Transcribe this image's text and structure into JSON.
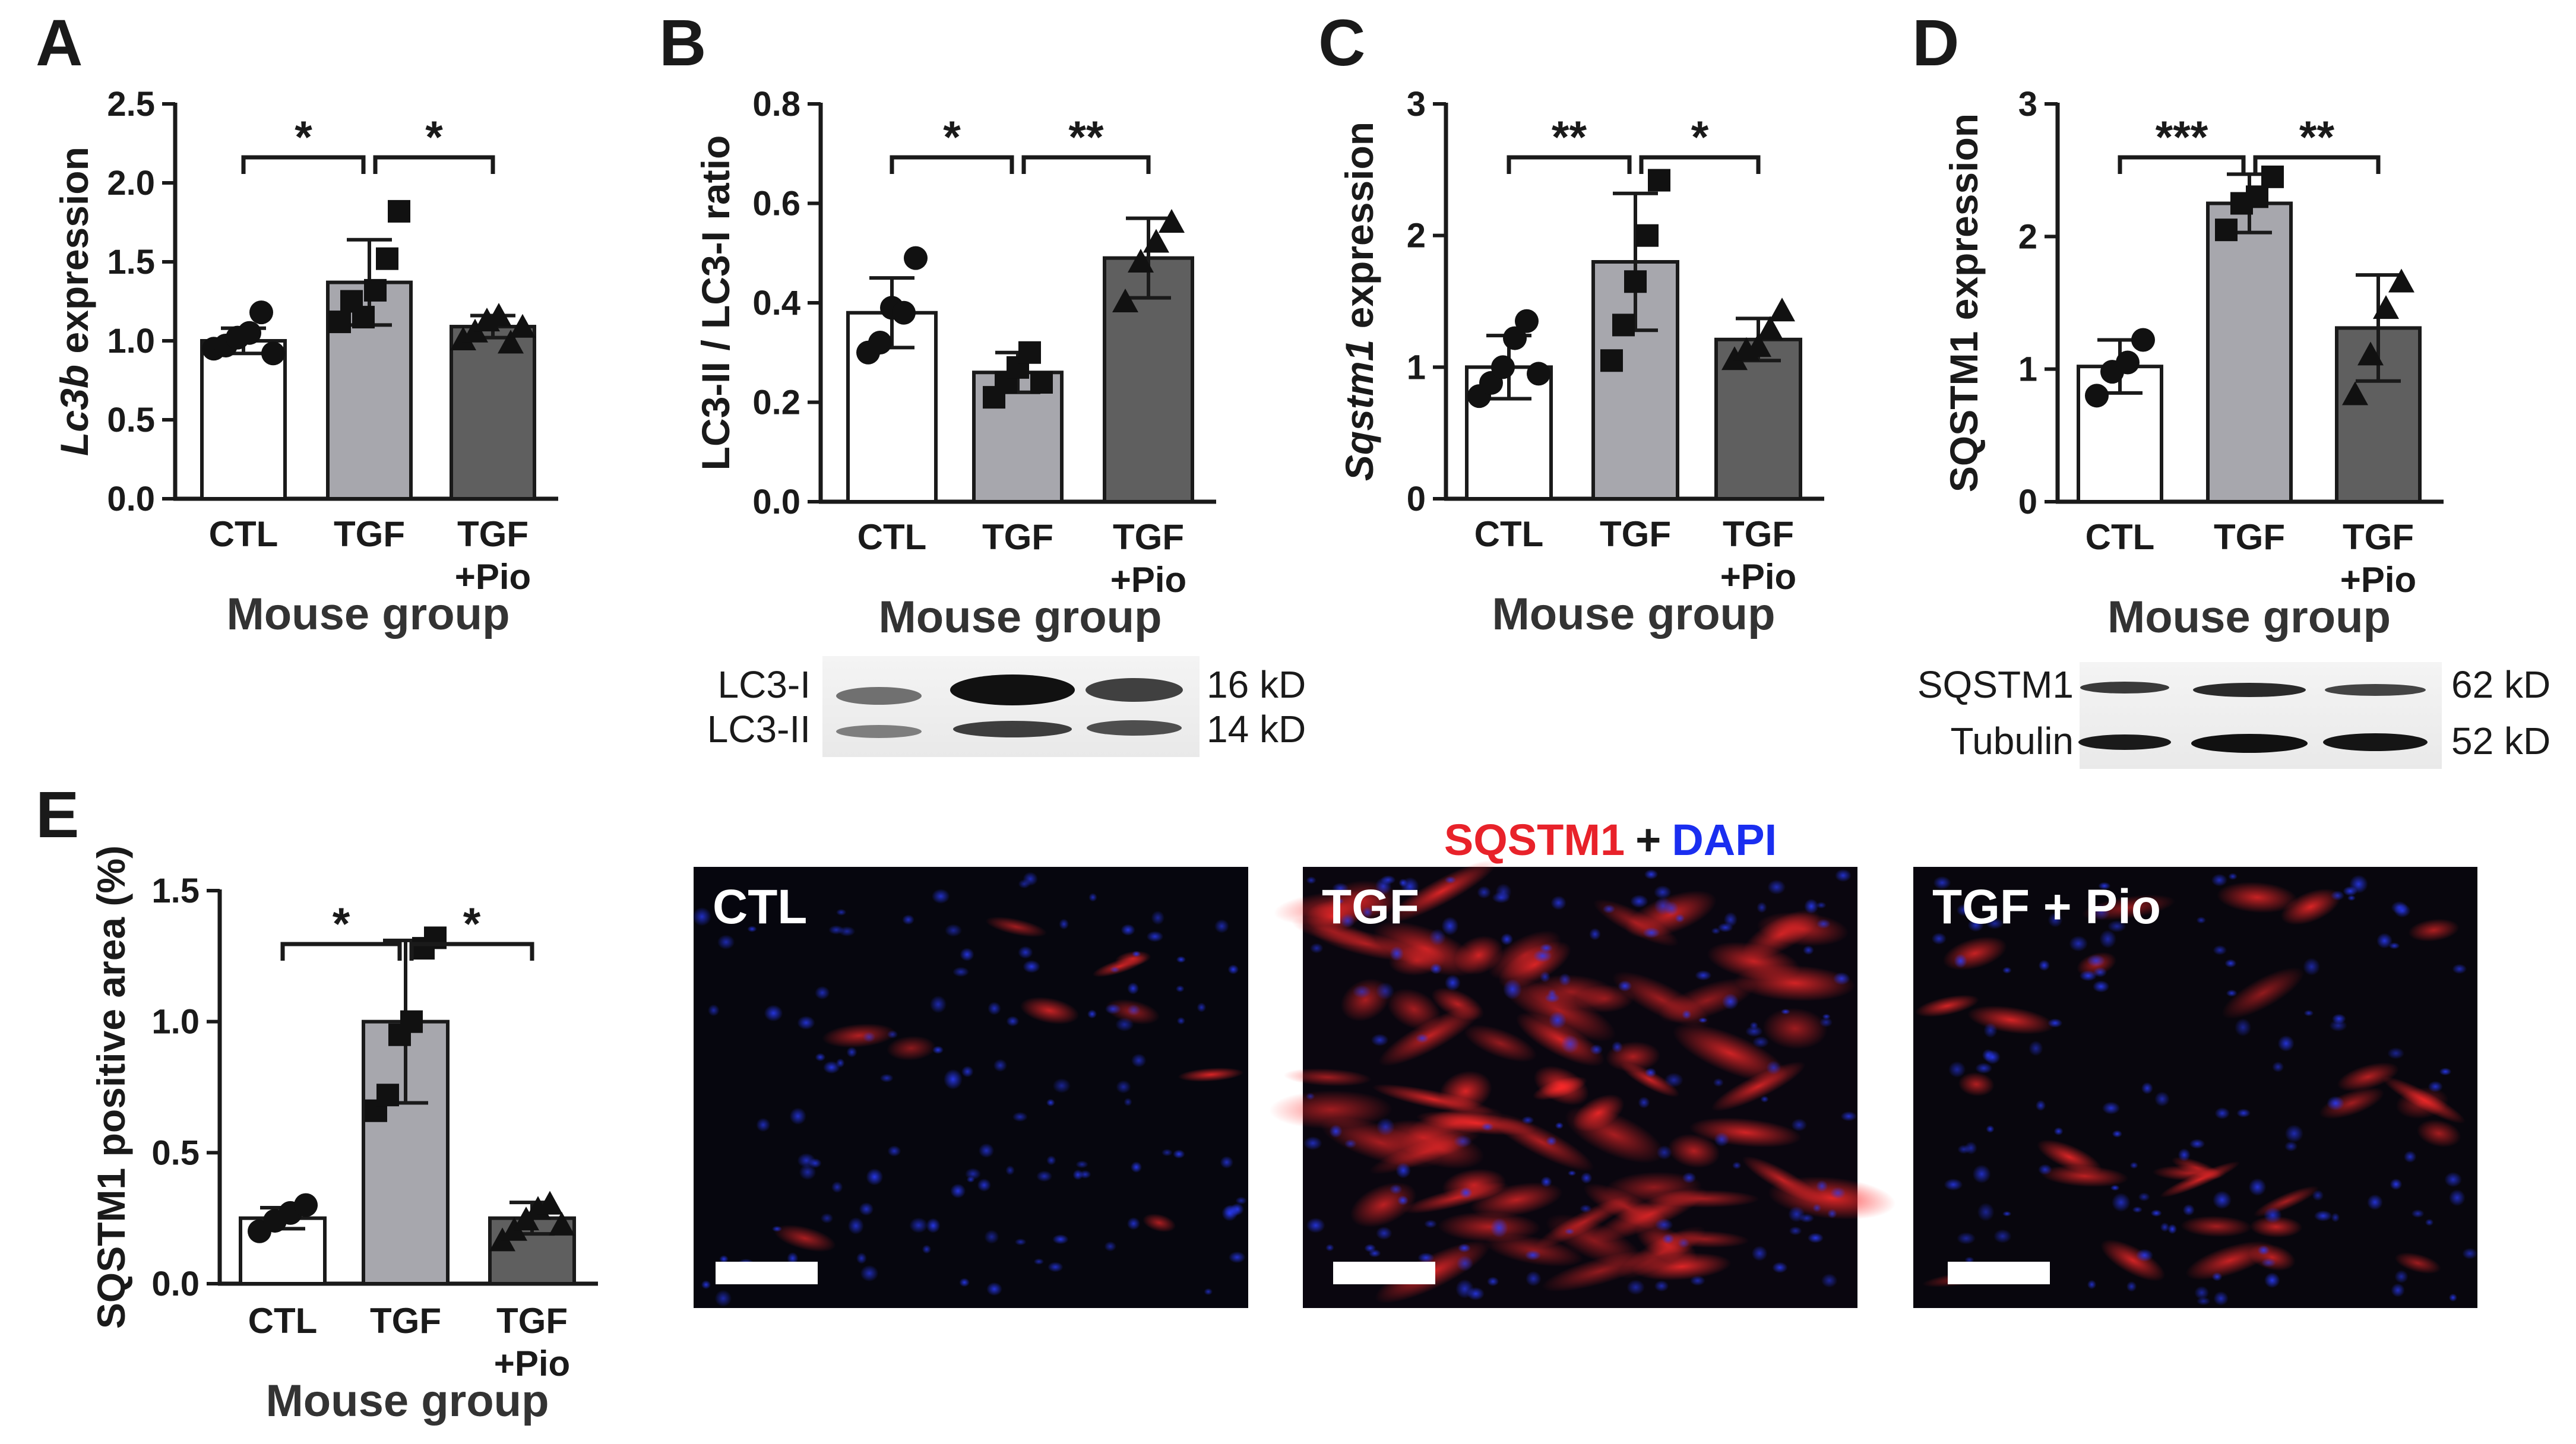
{
  "figure": {
    "group_title": "Mouse group",
    "e_stain_title": {
      "marker": "SQSTM1",
      "plus": "+",
      "dapi": "DAPI"
    },
    "micrograph_labels": [
      "CTL",
      "TGF",
      "TGF + Pio"
    ]
  },
  "blots": {
    "B": {
      "rows": [
        {
          "label": "LC3-I",
          "size": "16 kD"
        },
        {
          "label": "LC3-II",
          "size": "14 kD"
        }
      ]
    },
    "D": {
      "rows": [
        {
          "label": "SQSTM1",
          "size": "62 kD"
        },
        {
          "label": "Tubulin",
          "size": "52 kD"
        }
      ]
    }
  },
  "colors": {
    "CTL": "#ffffff",
    "TGF": "#a7a7ad",
    "TGF+Pio": "#5f5f5f",
    "axis": "#1a1a1a",
    "stain_marker": "#e8222a",
    "stain_dapi": "#1a2ef0"
  },
  "chart_data": [
    {
      "panel": "A",
      "type": "bar",
      "categories": [
        "CTL",
        "TGF",
        "TGF+Pio"
      ],
      "category_labels": [
        [
          "CTL"
        ],
        [
          "TGF"
        ],
        [
          "TGF",
          "+Pio"
        ]
      ],
      "ylabel": "Lc3b expression",
      "ylabel_italic": "Lc3b",
      "ylabel_rest": " expression",
      "xlabel": "Mouse group",
      "ylim": [
        0,
        2.5
      ],
      "yticks": [
        "0.0",
        "0.5",
        "1.0",
        "1.5",
        "2.0",
        "2.5"
      ],
      "values": [
        1.0,
        1.37,
        1.09
      ],
      "sd": [
        0.08,
        0.27,
        0.07
      ],
      "points": [
        [
          0.95,
          0.97,
          1.02,
          1.05,
          1.18,
          0.92
        ],
        [
          1.12,
          1.25,
          1.15,
          1.32,
          1.52,
          1.82
        ],
        [
          1.0,
          1.05,
          1.12,
          1.15,
          0.98,
          1.08
        ]
      ],
      "marker": [
        "circle",
        "square",
        "triangle"
      ],
      "significance": [
        {
          "from": 0,
          "to": 1,
          "label": "*"
        },
        {
          "from": 1,
          "to": 2,
          "label": "*"
        }
      ]
    },
    {
      "panel": "B",
      "type": "bar",
      "categories": [
        "CTL",
        "TGF",
        "TGF+Pio"
      ],
      "category_labels": [
        [
          "CTL"
        ],
        [
          "TGF"
        ],
        [
          "TGF",
          "+Pio"
        ]
      ],
      "ylabel": "LC3-II / LC3-I ratio",
      "ylabel_italic": "",
      "ylabel_rest": "LC3-II / LC3-I ratio",
      "xlabel": "Mouse group",
      "ylim": [
        0,
        0.8
      ],
      "yticks": [
        "0.0",
        "0.2",
        "0.4",
        "0.6",
        "0.8"
      ],
      "values": [
        0.38,
        0.26,
        0.49
      ],
      "sd": [
        0.07,
        0.04,
        0.08
      ],
      "points": [
        [
          0.3,
          0.32,
          0.39,
          0.38,
          0.49
        ],
        [
          0.21,
          0.24,
          0.27,
          0.3,
          0.24
        ],
        [
          0.4,
          0.48,
          0.52,
          0.56
        ]
      ],
      "marker": [
        "circle",
        "square",
        "triangle"
      ],
      "significance": [
        {
          "from": 0,
          "to": 1,
          "label": "*"
        },
        {
          "from": 1,
          "to": 2,
          "label": "**"
        }
      ]
    },
    {
      "panel": "C",
      "type": "bar",
      "categories": [
        "CTL",
        "TGF",
        "TGF+Pio"
      ],
      "category_labels": [
        [
          "CTL"
        ],
        [
          "TGF"
        ],
        [
          "TGF",
          "+Pio"
        ]
      ],
      "ylabel": "Sqstm1 expression",
      "ylabel_italic": "Sqstm1",
      "ylabel_rest": " expression",
      "xlabel": "Mouse group",
      "ylim": [
        0,
        3
      ],
      "yticks": [
        "0",
        "1",
        "2",
        "3"
      ],
      "values": [
        1.0,
        1.8,
        1.21
      ],
      "sd": [
        0.24,
        0.52,
        0.16
      ],
      "points": [
        [
          0.78,
          0.88,
          1.0,
          1.22,
          1.35,
          0.95
        ],
        [
          1.05,
          1.32,
          1.65,
          2.0,
          2.42
        ],
        [
          1.05,
          1.12,
          1.15,
          1.28,
          1.42
        ]
      ],
      "marker": [
        "circle",
        "square",
        "triangle"
      ],
      "significance": [
        {
          "from": 0,
          "to": 1,
          "label": "**"
        },
        {
          "from": 1,
          "to": 2,
          "label": "*"
        }
      ]
    },
    {
      "panel": "D",
      "type": "bar",
      "categories": [
        "CTL",
        "TGF",
        "TGF+Pio"
      ],
      "category_labels": [
        [
          "CTL"
        ],
        [
          "TGF"
        ],
        [
          "TGF",
          "+Pio"
        ]
      ],
      "ylabel": "SQSTM1 expression",
      "ylabel_italic": "",
      "ylabel_rest": "SQSTM1 expression",
      "xlabel": "Mouse group",
      "ylim": [
        0,
        3
      ],
      "yticks": [
        "0",
        "1",
        "2",
        "3"
      ],
      "values": [
        1.02,
        2.25,
        1.31
      ],
      "sd": [
        0.2,
        0.22,
        0.4
      ],
      "points": [
        [
          0.8,
          0.98,
          1.05,
          1.22
        ],
        [
          2.05,
          2.25,
          2.3,
          2.45
        ],
        [
          0.8,
          1.1,
          1.45,
          1.65
        ]
      ],
      "marker": [
        "circle",
        "square",
        "triangle"
      ],
      "significance": [
        {
          "from": 0,
          "to": 1,
          "label": "***"
        },
        {
          "from": 1,
          "to": 2,
          "label": "**"
        }
      ]
    },
    {
      "panel": "E",
      "type": "bar",
      "categories": [
        "CTL",
        "TGF",
        "TGF+Pio"
      ],
      "category_labels": [
        [
          "CTL"
        ],
        [
          "TGF"
        ],
        [
          "TGF",
          "+Pio"
        ]
      ],
      "ylabel": "SQSTM1 positive area (%)",
      "ylabel_italic": "",
      "ylabel_rest": "SQSTM1 positive area (%)",
      "xlabel": "Mouse group",
      "ylim": [
        0,
        1.5
      ],
      "yticks": [
        "0.0",
        "0.5",
        "1.0",
        "1.5"
      ],
      "values": [
        0.25,
        1.0,
        0.25
      ],
      "sd": [
        0.04,
        0.31,
        0.06
      ],
      "points": [
        [
          0.2,
          0.24,
          0.27,
          0.3
        ],
        [
          0.66,
          0.72,
          0.95,
          1.0,
          1.28,
          1.32
        ],
        [
          0.16,
          0.2,
          0.24,
          0.28,
          0.3,
          0.22
        ]
      ],
      "marker": [
        "circle",
        "square",
        "triangle"
      ],
      "significance": [
        {
          "from": 0,
          "to": 1,
          "label": "*"
        },
        {
          "from": 1,
          "to": 2,
          "label": "*"
        }
      ]
    }
  ]
}
